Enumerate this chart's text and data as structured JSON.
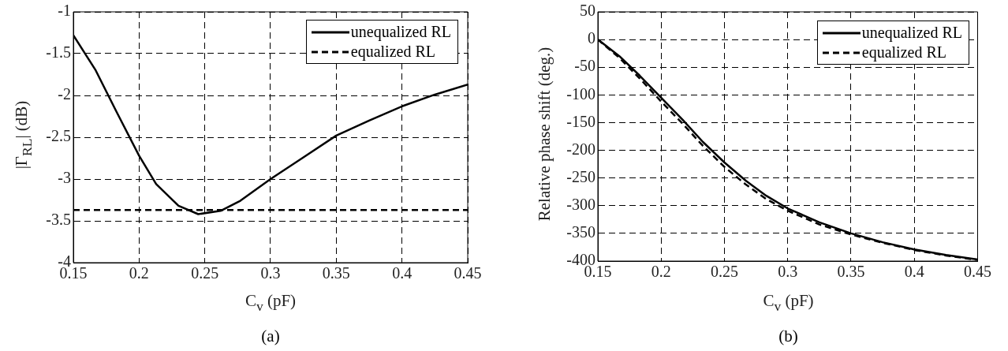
{
  "chart_data": [
    {
      "type": "line",
      "xlabel": "C$_{v}$ (pF)",
      "ylabel": "|Γ$_{RL}$| (dB)",
      "annotations": [
        "(a)"
      ],
      "xlim": [
        0.15,
        0.45
      ],
      "xticks": [
        0.15,
        0.2,
        0.25,
        0.3,
        0.35,
        0.4,
        0.45
      ],
      "ylim": [
        -4,
        -1
      ],
      "yticks": [
        -4,
        -3.5,
        -3,
        -2.5,
        -2,
        -1.5,
        -1
      ],
      "grid": true,
      "legend": "top right",
      "marker": "none",
      "series": [
        {
          "name": "unequalized RL",
          "color": "#000000",
          "line_style": "solid",
          "x": [
            0.15,
            0.167,
            0.183,
            0.2,
            0.213,
            0.23,
            0.245,
            0.262,
            0.277,
            0.3,
            0.325,
            0.35,
            0.375,
            0.4,
            0.425,
            0.45
          ],
          "values": [
            -1.28,
            -1.7,
            -2.2,
            -2.72,
            -3.06,
            -3.32,
            -3.42,
            -3.38,
            -3.26,
            -3.0,
            -2.74,
            -2.48,
            -2.3,
            -2.13,
            -1.99,
            -1.87
          ]
        },
        {
          "name": "equalized RL",
          "color": "#000000",
          "line_style": "dashed",
          "x": [
            0.15,
            0.45
          ],
          "values": [
            -3.37,
            -3.37
          ]
        }
      ]
    },
    {
      "type": "line",
      "xlabel": "C$_{v}$ (pF)",
      "ylabel": "Relative phase shift (deg.)",
      "annotations": [
        "(b)"
      ],
      "xlim": [
        0.15,
        0.45
      ],
      "xticks": [
        0.15,
        0.2,
        0.25,
        0.3,
        0.35,
        0.4,
        0.45
      ],
      "ylim": [
        -400,
        50
      ],
      "yticks": [
        -400,
        -350,
        -300,
        -250,
        -200,
        -150,
        -100,
        -50,
        0,
        50
      ],
      "grid": true,
      "legend": "top right",
      "marker": "none",
      "series": [
        {
          "name": "unequalized RL",
          "color": "#000000",
          "line_style": "solid",
          "x": [
            0.15,
            0.167,
            0.183,
            0.2,
            0.217,
            0.233,
            0.25,
            0.267,
            0.283,
            0.3,
            0.325,
            0.35,
            0.375,
            0.4,
            0.425,
            0.45
          ],
          "values": [
            0,
            -30,
            -65,
            -105,
            -145,
            -185,
            -222,
            -255,
            -282,
            -305,
            -330,
            -350,
            -366,
            -379,
            -389,
            -397
          ]
        },
        {
          "name": "equalized RL",
          "color": "#000000",
          "line_style": "dashed",
          "x": [
            0.15,
            0.167,
            0.183,
            0.2,
            0.217,
            0.233,
            0.25,
            0.267,
            0.283,
            0.3,
            0.325,
            0.35,
            0.375,
            0.4,
            0.425,
            0.45
          ],
          "values": [
            0,
            -33,
            -70,
            -112,
            -152,
            -192,
            -230,
            -262,
            -288,
            -309,
            -334,
            -352,
            -367,
            -380,
            -390,
            -398
          ]
        }
      ]
    }
  ]
}
